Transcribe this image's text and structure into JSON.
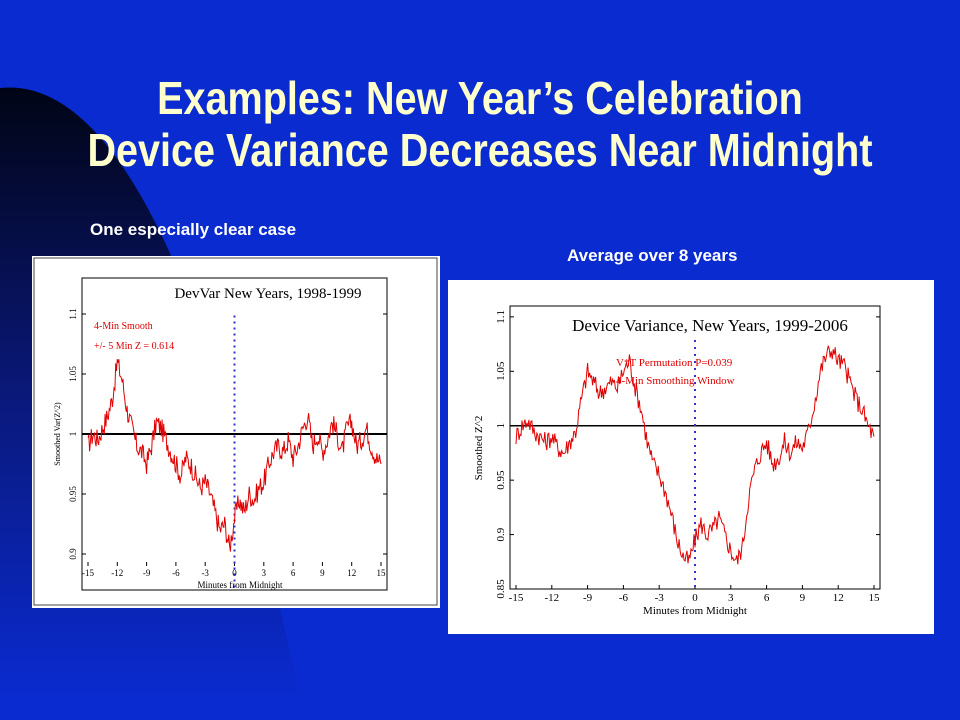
{
  "slide": {
    "title_line1": "Examples: New Year’s Celebration",
    "title_line2": "Device Variance Decreases Near Midnight",
    "caption_left": "One especially clear case",
    "caption_right": "Average over 8 years",
    "colors": {
      "background": "#0a2bd0",
      "title": "#ffffcc",
      "trace": "#e00000",
      "midnight_line": "#3030d0"
    }
  },
  "chart_data": [
    {
      "type": "line",
      "title": "DevVar New Years, 1998-1999",
      "xlabel": "Minutes from Midnight",
      "ylabel": "Smoothed Var(Z^2)",
      "annotations": [
        "4-Min Smooth",
        "+/- 5 Min Z = 0.614"
      ],
      "x_ticks": [
        "-15",
        "-12",
        "-9",
        "-6",
        "-3",
        "0",
        "3",
        "6",
        "9",
        "12",
        "15"
      ],
      "y_ticks": [
        "0.9",
        "0.95",
        "1",
        "1.05",
        "1.1"
      ],
      "xlim": [
        -15,
        15
      ],
      "ylim": [
        0.87,
        1.13
      ],
      "reference_y": 1.0,
      "midnight_x": 0,
      "series": [
        {
          "x": [
            -15,
            -14.5,
            -14,
            -13.5,
            -13,
            -12.5,
            -12,
            -11.5,
            -11,
            -10.5,
            -10,
            -9.5,
            -9,
            -8.5,
            -8,
            -7.5,
            -7,
            -6.5,
            -6,
            -5.5,
            -5,
            -4.5,
            -4,
            -3.5,
            -3,
            -2.5,
            -2,
            -1.5,
            -1,
            -0.5,
            0,
            0.5,
            1,
            1.5,
            2,
            2.5,
            3,
            3.5,
            4,
            4.5,
            5,
            5.5,
            6,
            6.5,
            7,
            7.5,
            8,
            8.5,
            9,
            9.5,
            10,
            10.5,
            11,
            11.5,
            12,
            12.5,
            13,
            13.5,
            14,
            14.5,
            15
          ],
          "values": [
            0.99,
            1.0,
            0.995,
            1.005,
            1.015,
            1.03,
            1.06,
            1.045,
            1.02,
            1.005,
            0.99,
            0.985,
            0.975,
            0.99,
            1.01,
            1.005,
            0.995,
            0.985,
            0.975,
            0.965,
            0.98,
            0.975,
            0.965,
            0.955,
            0.96,
            0.95,
            0.935,
            0.92,
            0.925,
            0.905,
            0.93,
            0.945,
            0.935,
            0.95,
            0.945,
            0.955,
            0.96,
            0.975,
            0.985,
            0.99,
            0.985,
            0.995,
            0.98,
            0.99,
            1.005,
            1.015,
            0.99,
            1.0,
            0.985,
            0.995,
            1.01,
            1.0,
            0.985,
            1.005,
            1.01,
            0.99,
            0.995,
            1.005,
            0.99,
            0.98,
            0.975
          ]
        }
      ]
    },
    {
      "type": "line",
      "title": "Device Variance, New Years, 1999-2006",
      "xlabel": "Minutes from Midnight",
      "ylabel": "Smoothed Z^2",
      "annotations": [
        "V*T Permutation P=0.039",
        "4-Min Smoothing Window"
      ],
      "x_ticks": [
        "-15",
        "-12",
        "-9",
        "-6",
        "-3",
        "0",
        "3",
        "6",
        "9",
        "12",
        "15"
      ],
      "y_ticks": [
        "0.85",
        "0.9",
        "0.95",
        "1",
        "1.05",
        "1.1"
      ],
      "xlim": [
        -15,
        15
      ],
      "ylim": [
        0.85,
        1.11
      ],
      "reference_y": 1.0,
      "midnight_x": 0,
      "series": [
        {
          "x": [
            -15,
            -14.5,
            -14,
            -13.5,
            -13,
            -12.5,
            -12,
            -11.5,
            -11,
            -10.5,
            -10,
            -9.5,
            -9,
            -8.5,
            -8,
            -7.5,
            -7,
            -6.5,
            -6,
            -5.5,
            -5,
            -4.5,
            -4,
            -3.5,
            -3,
            -2.5,
            -2,
            -1.5,
            -1,
            -0.5,
            0,
            0.5,
            1,
            1.5,
            2,
            2.5,
            3,
            3.5,
            4,
            4.5,
            5,
            5.5,
            6,
            6.5,
            7,
            7.5,
            8,
            8.5,
            9,
            9.5,
            10,
            10.5,
            11,
            11.5,
            12,
            12.5,
            13,
            13.5,
            14,
            14.5,
            15
          ],
          "values": [
            0.99,
            1.0,
            1.005,
            0.995,
            0.99,
            0.985,
            0.99,
            0.98,
            0.975,
            0.985,
            0.995,
            1.025,
            1.05,
            1.04,
            1.03,
            1.035,
            1.04,
            1.035,
            1.05,
            1.06,
            1.035,
            1.015,
            0.985,
            0.965,
            0.955,
            0.94,
            0.92,
            0.895,
            0.88,
            0.875,
            0.895,
            0.91,
            0.9,
            0.905,
            0.915,
            0.9,
            0.885,
            0.875,
            0.89,
            0.935,
            0.96,
            0.975,
            0.985,
            0.965,
            0.97,
            0.985,
            0.975,
            0.985,
            0.98,
            0.995,
            1.02,
            1.05,
            1.065,
            1.07,
            1.06,
            1.055,
            1.04,
            1.025,
            1.015,
            1.0,
            0.99
          ]
        }
      ]
    }
  ]
}
